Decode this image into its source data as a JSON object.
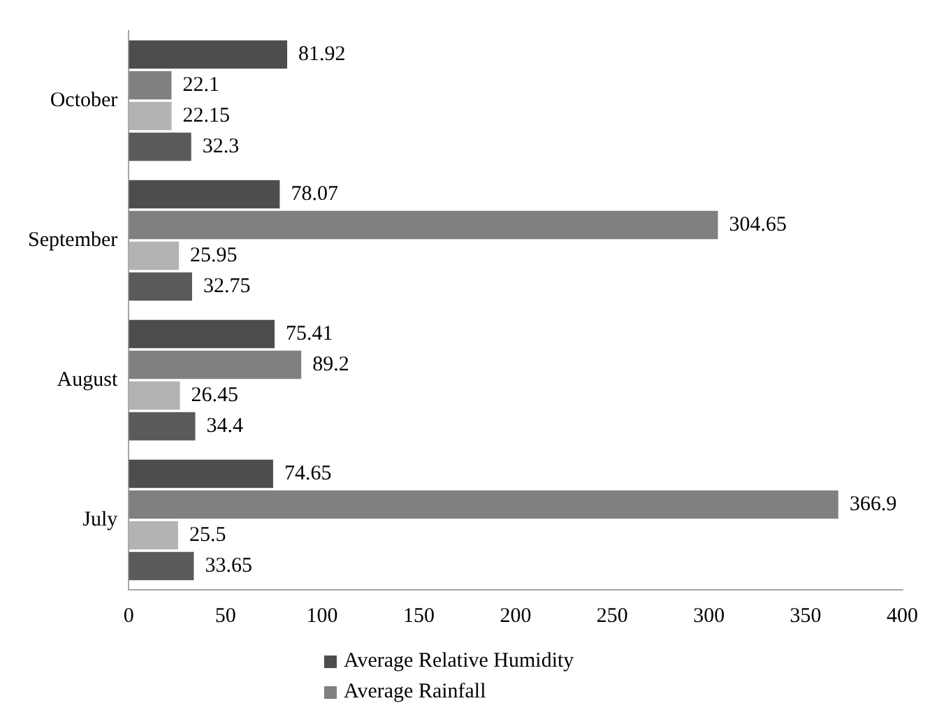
{
  "chart_data": {
    "type": "bar",
    "orientation": "horizontal",
    "categories": [
      "October",
      "September",
      "August",
      "July"
    ],
    "series": [
      {
        "name": "Average Relative Humidity",
        "color": "#4d4d4d",
        "values": [
          81.92,
          78.07,
          75.41,
          74.65
        ]
      },
      {
        "name": "Average Rainfall",
        "color": "#808080",
        "values": [
          22.1,
          304.65,
          89.2,
          366.9
        ]
      },
      {
        "color": "#b3b3b3",
        "values": [
          22.15,
          25.95,
          26.45,
          25.5
        ]
      },
      {
        "color": "#5a5a5a",
        "values": [
          32.3,
          32.75,
          34.4,
          33.65
        ]
      }
    ],
    "xlim": [
      0,
      400
    ],
    "xticks": [
      0,
      50,
      100,
      150,
      200,
      250,
      300,
      350,
      400
    ],
    "data_labels": true,
    "grid": false,
    "legend": "bottom"
  }
}
